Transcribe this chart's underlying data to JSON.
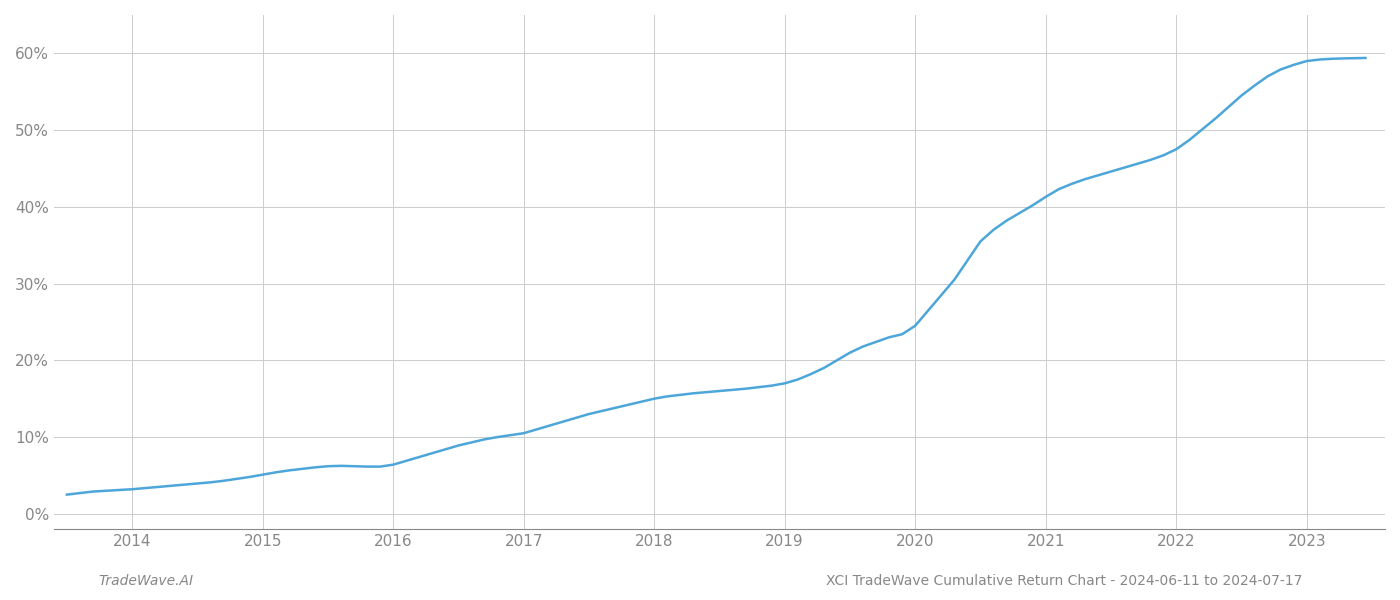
{
  "title": "XCI TradeWave Cumulative Return Chart - 2024-06-11 to 2024-07-17",
  "watermark": "TradeWave.AI",
  "line_color": "#4da6d9",
  "background_color": "#ffffff",
  "grid_color": "#cccccc",
  "x_years": [
    2014,
    2015,
    2016,
    2017,
    2018,
    2019,
    2020,
    2021,
    2022,
    2023
  ],
  "x_data": [
    2013.5,
    2013.6,
    2013.7,
    2013.8,
    2013.9,
    2014.0,
    2014.1,
    2014.2,
    2014.3,
    2014.4,
    2014.5,
    2014.6,
    2014.7,
    2014.8,
    2014.9,
    2015.0,
    2015.1,
    2015.2,
    2015.3,
    2015.4,
    2015.5,
    2015.6,
    2015.7,
    2015.8,
    2015.9,
    2016.0,
    2016.1,
    2016.2,
    2016.3,
    2016.4,
    2016.5,
    2016.6,
    2016.7,
    2016.8,
    2016.9,
    2017.0,
    2017.1,
    2017.2,
    2017.3,
    2017.4,
    2017.5,
    2017.6,
    2017.7,
    2017.8,
    2017.9,
    2018.0,
    2018.1,
    2018.2,
    2018.3,
    2018.4,
    2018.5,
    2018.6,
    2018.7,
    2018.8,
    2018.9,
    2019.0,
    2019.1,
    2019.2,
    2019.3,
    2019.4,
    2019.5,
    2019.6,
    2019.7,
    2019.8,
    2019.9,
    2020.0,
    2020.1,
    2020.2,
    2020.3,
    2020.4,
    2020.5,
    2020.6,
    2020.7,
    2020.8,
    2020.9,
    2021.0,
    2021.1,
    2021.2,
    2021.3,
    2021.4,
    2021.5,
    2021.6,
    2021.7,
    2021.8,
    2021.9,
    2022.0,
    2022.1,
    2022.2,
    2022.3,
    2022.4,
    2022.5,
    2022.6,
    2022.7,
    2022.8,
    2022.9,
    2023.0,
    2023.1,
    2023.2,
    2023.3,
    2023.45
  ],
  "y_data": [
    2.5,
    2.7,
    2.9,
    3.0,
    3.1,
    3.2,
    3.35,
    3.5,
    3.65,
    3.8,
    3.95,
    4.1,
    4.3,
    4.55,
    4.8,
    5.1,
    5.4,
    5.65,
    5.85,
    6.05,
    6.2,
    6.25,
    6.2,
    6.15,
    6.15,
    6.4,
    6.9,
    7.4,
    7.9,
    8.4,
    8.9,
    9.3,
    9.7,
    10.0,
    10.25,
    10.5,
    11.0,
    11.5,
    12.0,
    12.5,
    13.0,
    13.4,
    13.8,
    14.2,
    14.6,
    15.0,
    15.3,
    15.5,
    15.7,
    15.85,
    16.0,
    16.15,
    16.3,
    16.5,
    16.7,
    17.0,
    17.5,
    18.2,
    19.0,
    20.0,
    21.0,
    21.8,
    22.4,
    23.0,
    23.4,
    24.5,
    26.5,
    28.5,
    30.5,
    33.0,
    35.5,
    37.0,
    38.2,
    39.2,
    40.2,
    41.3,
    42.3,
    43.0,
    43.6,
    44.1,
    44.6,
    45.1,
    45.6,
    46.1,
    46.7,
    47.5,
    48.7,
    50.1,
    51.5,
    53.0,
    54.5,
    55.8,
    57.0,
    57.9,
    58.5,
    59.0,
    59.2,
    59.3,
    59.35,
    59.4
  ],
  "ylim": [
    -2,
    65
  ],
  "yticks": [
    0,
    10,
    20,
    30,
    40,
    50,
    60
  ],
  "ytick_labels": [
    "0%",
    "10%",
    "20%",
    "30%",
    "40%",
    "50%",
    "60%"
  ],
  "xlim": [
    2013.4,
    2023.6
  ],
  "line_width": 1.8,
  "title_fontsize": 10,
  "watermark_fontsize": 10,
  "tick_fontsize": 11,
  "tick_color": "#888888",
  "axis_color": "#888888",
  "footer_color": "#888888"
}
